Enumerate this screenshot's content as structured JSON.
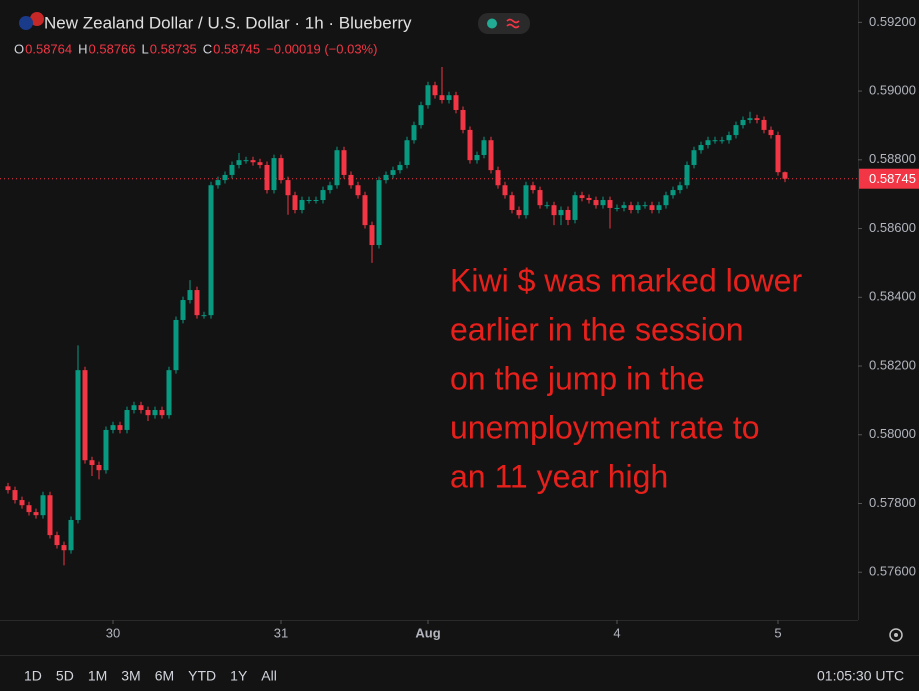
{
  "chart_data": {
    "type": "candlestick",
    "title": "New Zealand Dollar / U.S. Dollar · 1h · Blueberry",
    "ohlc_labels": [
      "O",
      "H",
      "L",
      "C"
    ],
    "change_label": "−0.00019 (−0.03%)",
    "up_color": "#089981",
    "down_color": "#f23645",
    "grid": false,
    "open": [
      0.5785,
      0.57839,
      0.5781,
      0.57795,
      0.57775,
      0.57766,
      0.57824,
      0.57708,
      0.57679,
      0.57664,
      0.57752,
      0.58188,
      0.57926,
      0.57912,
      0.57897,
      0.58014,
      0.58028,
      0.58014,
      0.58072,
      0.58086,
      0.58072,
      0.58057,
      0.58072,
      0.58057,
      0.58188,
      0.58334,
      0.58392,
      0.58421,
      0.58348,
      0.58348,
      0.58726,
      0.58741,
      0.58756,
      0.58785,
      0.58799,
      0.58799,
      0.58793,
      0.58785,
      0.58712,
      0.58805,
      0.58741,
      0.58697,
      0.58654,
      0.58683,
      0.58683,
      0.58683,
      0.58712,
      0.58726,
      0.58828,
      0.58756,
      0.58726,
      0.58697,
      0.5861,
      0.58552,
      0.58741,
      0.58756,
      0.5877,
      0.58785,
      0.58857,
      0.58901,
      0.58959,
      0.59017,
      0.58988,
      0.58974,
      0.58988,
      0.58945,
      0.58887,
      0.58799,
      0.58814,
      0.58857,
      0.5877,
      0.58726,
      0.58697,
      0.58654,
      0.58639,
      0.58726,
      0.58712,
      0.58668,
      0.58668,
      0.58639,
      0.58654,
      0.58625,
      0.58697,
      0.58689,
      0.58683,
      0.58668,
      0.58683,
      0.5866,
      0.5866,
      0.58668,
      0.58654,
      0.58668,
      0.58668,
      0.58654,
      0.58668,
      0.58697,
      0.58712,
      0.58726,
      0.58785,
      0.58828,
      0.58843,
      0.58857,
      0.58857,
      0.58857,
      0.58872,
      0.58901,
      0.58916,
      0.58921,
      0.58916,
      0.58887,
      0.58872,
      0.58764
    ],
    "high": [
      0.5786,
      0.57849,
      0.5782,
      0.57805,
      0.57785,
      0.57834,
      0.57834,
      0.57718,
      0.57689,
      0.57762,
      0.5826,
      0.58198,
      0.57936,
      0.57922,
      0.58024,
      0.58038,
      0.58038,
      0.58082,
      0.58096,
      0.58096,
      0.58082,
      0.58082,
      0.58082,
      0.58198,
      0.58344,
      0.58402,
      0.5845,
      0.58431,
      0.58358,
      0.58736,
      0.58751,
      0.58766,
      0.58795,
      0.5882,
      0.58809,
      0.58809,
      0.58803,
      0.58795,
      0.58815,
      0.58815,
      0.58751,
      0.58707,
      0.58693,
      0.58693,
      0.58693,
      0.58722,
      0.58736,
      0.58838,
      0.58838,
      0.58766,
      0.58736,
      0.58707,
      0.5862,
      0.58751,
      0.58766,
      0.5878,
      0.58795,
      0.58867,
      0.58911,
      0.58969,
      0.59027,
      0.59027,
      0.5907,
      0.58998,
      0.58998,
      0.58955,
      0.58897,
      0.58824,
      0.58867,
      0.58867,
      0.5878,
      0.58736,
      0.58707,
      0.58664,
      0.58736,
      0.58736,
      0.58722,
      0.58678,
      0.58678,
      0.58664,
      0.58664,
      0.58707,
      0.58707,
      0.58699,
      0.58693,
      0.58693,
      0.58693,
      0.5867,
      0.58678,
      0.58678,
      0.58678,
      0.58678,
      0.58678,
      0.58678,
      0.58707,
      0.58722,
      0.58736,
      0.58795,
      0.58838,
      0.58853,
      0.58867,
      0.58867,
      0.58867,
      0.58882,
      0.58911,
      0.58926,
      0.5894,
      0.58931,
      0.58926,
      0.58897,
      0.58882,
      0.58766
    ],
    "low": [
      0.57829,
      0.578,
      0.57785,
      0.57765,
      0.57756,
      0.57756,
      0.57698,
      0.57669,
      0.5762,
      0.57654,
      0.57742,
      0.57916,
      0.5788,
      0.5787,
      0.57887,
      0.58004,
      0.58004,
      0.58004,
      0.58062,
      0.58062,
      0.5804,
      0.58047,
      0.58047,
      0.58047,
      0.58178,
      0.58324,
      0.58382,
      0.58338,
      0.58338,
      0.58338,
      0.58716,
      0.58731,
      0.58746,
      0.58775,
      0.58789,
      0.58783,
      0.58775,
      0.58702,
      0.58702,
      0.58731,
      0.5864,
      0.58644,
      0.58644,
      0.58673,
      0.58673,
      0.58673,
      0.58702,
      0.58716,
      0.58746,
      0.58716,
      0.58687,
      0.586,
      0.585,
      0.58542,
      0.58731,
      0.58746,
      0.5876,
      0.58775,
      0.58847,
      0.58891,
      0.58949,
      0.58978,
      0.58964,
      0.58964,
      0.58935,
      0.58877,
      0.58789,
      0.58789,
      0.58804,
      0.5876,
      0.58716,
      0.58687,
      0.58644,
      0.58629,
      0.58629,
      0.58702,
      0.58658,
      0.58658,
      0.5861,
      0.5861,
      0.5861,
      0.58615,
      0.58679,
      0.58673,
      0.58658,
      0.58658,
      0.586,
      0.5865,
      0.5865,
      0.58644,
      0.58644,
      0.58658,
      0.58644,
      0.58644,
      0.58658,
      0.58687,
      0.58702,
      0.58716,
      0.58775,
      0.58818,
      0.58833,
      0.58847,
      0.58847,
      0.58847,
      0.58862,
      0.58891,
      0.58906,
      0.58906,
      0.58877,
      0.58862,
      0.58754,
      0.58735
    ],
    "close": [
      0.57839,
      0.5781,
      0.57795,
      0.57775,
      0.57766,
      0.57824,
      0.57708,
      0.57679,
      0.57664,
      0.57752,
      0.58188,
      0.57926,
      0.57912,
      0.57897,
      0.58014,
      0.58028,
      0.58014,
      0.58072,
      0.58086,
      0.58072,
      0.58057,
      0.58072,
      0.58057,
      0.58188,
      0.58334,
      0.58392,
      0.58421,
      0.58348,
      0.58348,
      0.58726,
      0.58741,
      0.58756,
      0.58785,
      0.58799,
      0.58799,
      0.58793,
      0.58785,
      0.58712,
      0.58805,
      0.58741,
      0.58697,
      0.58654,
      0.58683,
      0.58683,
      0.58683,
      0.58712,
      0.58726,
      0.58828,
      0.58756,
      0.58726,
      0.58697,
      0.5861,
      0.58552,
      0.58741,
      0.58756,
      0.5877,
      0.58785,
      0.58857,
      0.58901,
      0.58959,
      0.59017,
      0.58988,
      0.58974,
      0.58988,
      0.58945,
      0.58887,
      0.58799,
      0.58814,
      0.58857,
      0.5877,
      0.58726,
      0.58697,
      0.58654,
      0.58639,
      0.58726,
      0.58712,
      0.58668,
      0.58668,
      0.58639,
      0.58654,
      0.58625,
      0.58697,
      0.58689,
      0.58683,
      0.58668,
      0.58683,
      0.5866,
      0.5866,
      0.58668,
      0.58654,
      0.58668,
      0.58668,
      0.58654,
      0.58668,
      0.58697,
      0.58712,
      0.58726,
      0.58785,
      0.58828,
      0.58843,
      0.58857,
      0.58857,
      0.58857,
      0.58872,
      0.58901,
      0.58916,
      0.58921,
      0.58916,
      0.58887,
      0.58872,
      0.58764,
      0.58745
    ],
    "xticks": [
      {
        "value": 15,
        "label": "30"
      },
      {
        "value": 39,
        "label": "31"
      },
      {
        "value": 60,
        "label": "Aug"
      },
      {
        "value": 87,
        "label": "4"
      },
      {
        "value": 110,
        "label": "5"
      }
    ],
    "ylim": [
      0.57461,
      0.59265
    ],
    "yticks": [
      {
        "value": 0.592,
        "label": "0.59200"
      },
      {
        "value": 0.59,
        "label": "0.59000"
      },
      {
        "value": 0.588,
        "label": "0.58800"
      },
      {
        "value": 0.586,
        "label": "0.58600"
      },
      {
        "value": 0.584,
        "label": "0.58400"
      },
      {
        "value": 0.582,
        "label": "0.58200"
      },
      {
        "value": 0.58,
        "label": "0.58000"
      },
      {
        "value": 0.578,
        "label": "0.57800"
      },
      {
        "value": 0.576,
        "label": "0.57600"
      }
    ],
    "annotation": {
      "color": "#e8201c",
      "lines": [
        "Kiwi $ was marked lower",
        "earlier in the session",
        "on the jump in the",
        "unemployment rate to",
        "an 11 year high"
      ]
    }
  },
  "toolbar": {
    "ranges": [
      "1D",
      "5D",
      "1M",
      "3M",
      "6M",
      "YTD",
      "1Y",
      "All"
    ],
    "clock": "01:05:30 UTC"
  }
}
